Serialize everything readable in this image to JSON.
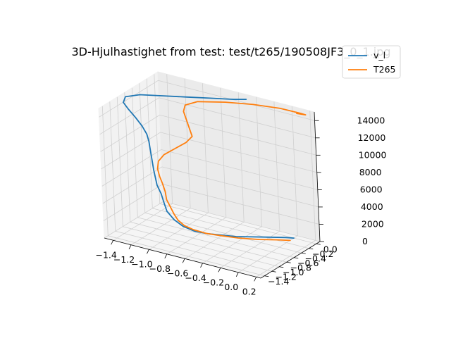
{
  "chart_data": {
    "type": "line",
    "projection": "3d",
    "title": "3D-Hjulhastighet from test: test/t265/190508JF3_0_1.jpg",
    "grid": true,
    "legend_placement": "top-right",
    "xlim": [
      -1.5,
      0.25
    ],
    "ylim": [
      -1.5,
      0.1
    ],
    "zlim": [
      0,
      15000
    ],
    "x_ticks": [
      -1.4,
      -1.2,
      -1.0,
      -0.8,
      -0.6,
      -0.4,
      -0.2,
      0.0,
      0.2
    ],
    "x_tick_labels": [
      "−1.4",
      "−1.2",
      "−1.0",
      "−0.8",
      "−0.6",
      "−0.4",
      "−0.2",
      "0.0",
      "0.2"
    ],
    "y_ticks": [
      -1.4,
      -1.2,
      -1.0,
      -0.8,
      -0.6,
      -0.4,
      -0.2,
      0.0
    ],
    "y_tick_labels": [
      "−1.4",
      "−1.2",
      "−1.0",
      "−0.8",
      "−0.6",
      "−0.4",
      "−0.2",
      "0.0"
    ],
    "z_ticks": [
      0,
      2000,
      4000,
      6000,
      8000,
      10000,
      12000,
      14000
    ],
    "z_tick_labels": [
      "0",
      "2000",
      "4000",
      "6000",
      "8000",
      "10000",
      "12000",
      "14000"
    ],
    "series": [
      {
        "name": "v_l",
        "color": "#1f77b4",
        "points": [
          [
            0.0,
            0.0,
            0
          ],
          [
            -0.05,
            -0.1,
            200
          ],
          [
            -0.15,
            -0.3,
            500
          ],
          [
            -0.25,
            -0.5,
            800
          ],
          [
            -0.35,
            -0.7,
            1100
          ],
          [
            -0.45,
            -0.85,
            1400
          ],
          [
            -0.55,
            -1.0,
            1700
          ],
          [
            -0.65,
            -1.1,
            2000
          ],
          [
            -0.75,
            -1.15,
            2400
          ],
          [
            -0.85,
            -1.15,
            2900
          ],
          [
            -0.95,
            -1.1,
            3500
          ],
          [
            -1.0,
            -1.05,
            4200
          ],
          [
            -1.05,
            -1.0,
            5000
          ],
          [
            -1.1,
            -0.98,
            5800
          ],
          [
            -1.12,
            -0.97,
            6600
          ],
          [
            -1.14,
            -0.96,
            7400
          ],
          [
            -1.15,
            -0.96,
            8200
          ],
          [
            -1.16,
            -0.96,
            9000
          ],
          [
            -1.17,
            -0.96,
            9800
          ],
          [
            -1.18,
            -0.96,
            10600
          ],
          [
            -1.2,
            -0.96,
            11400
          ],
          [
            -1.25,
            -0.96,
            12200
          ],
          [
            -1.32,
            -0.96,
            13000
          ],
          [
            -1.4,
            -0.96,
            13800
          ],
          [
            -1.45,
            -0.96,
            14400
          ],
          [
            -1.45,
            -0.9,
            14900
          ],
          [
            -1.35,
            -0.75,
            15000
          ],
          [
            -1.15,
            -0.6,
            15000
          ],
          [
            -0.95,
            -0.45,
            15000
          ],
          [
            -0.75,
            -0.3,
            15000
          ],
          [
            -0.55,
            -0.15,
            15000
          ],
          [
            -0.45,
            -0.05,
            15000
          ]
        ]
      },
      {
        "name": "T265",
        "color": "#ff7f0e",
        "points": [
          [
            0.0,
            -0.1,
            0
          ],
          [
            -0.08,
            -0.25,
            250
          ],
          [
            -0.2,
            -0.45,
            500
          ],
          [
            -0.35,
            -0.65,
            800
          ],
          [
            -0.5,
            -0.8,
            1100
          ],
          [
            -0.6,
            -0.92,
            1400
          ],
          [
            -0.7,
            -1.0,
            1750
          ],
          [
            -0.78,
            -1.05,
            2150
          ],
          [
            -0.85,
            -1.05,
            2600
          ],
          [
            -0.9,
            -1.03,
            3100
          ],
          [
            -0.95,
            -1.0,
            3700
          ],
          [
            -1.0,
            -0.98,
            4400
          ],
          [
            -1.02,
            -0.96,
            5200
          ],
          [
            -1.05,
            -0.95,
            6000
          ],
          [
            -1.08,
            -0.95,
            6800
          ],
          [
            -1.1,
            -0.95,
            7600
          ],
          [
            -1.1,
            -0.92,
            8400
          ],
          [
            -1.05,
            -0.88,
            9200
          ],
          [
            -0.95,
            -0.82,
            10000
          ],
          [
            -0.85,
            -0.75,
            10800
          ],
          [
            -0.8,
            -0.7,
            11500
          ],
          [
            -0.85,
            -0.65,
            12200
          ],
          [
            -0.9,
            -0.6,
            12900
          ],
          [
            -0.95,
            -0.55,
            13600
          ],
          [
            -0.95,
            -0.5,
            14200
          ],
          [
            -0.85,
            -0.4,
            14600
          ],
          [
            -0.6,
            -0.25,
            14800
          ],
          [
            -0.35,
            -0.1,
            14800
          ],
          [
            -0.1,
            0.02,
            14700
          ],
          [
            0.1,
            0.08,
            14500
          ],
          [
            0.15,
            0.1,
            14400
          ],
          [
            0.05,
            0.1,
            14300
          ]
        ]
      }
    ]
  }
}
